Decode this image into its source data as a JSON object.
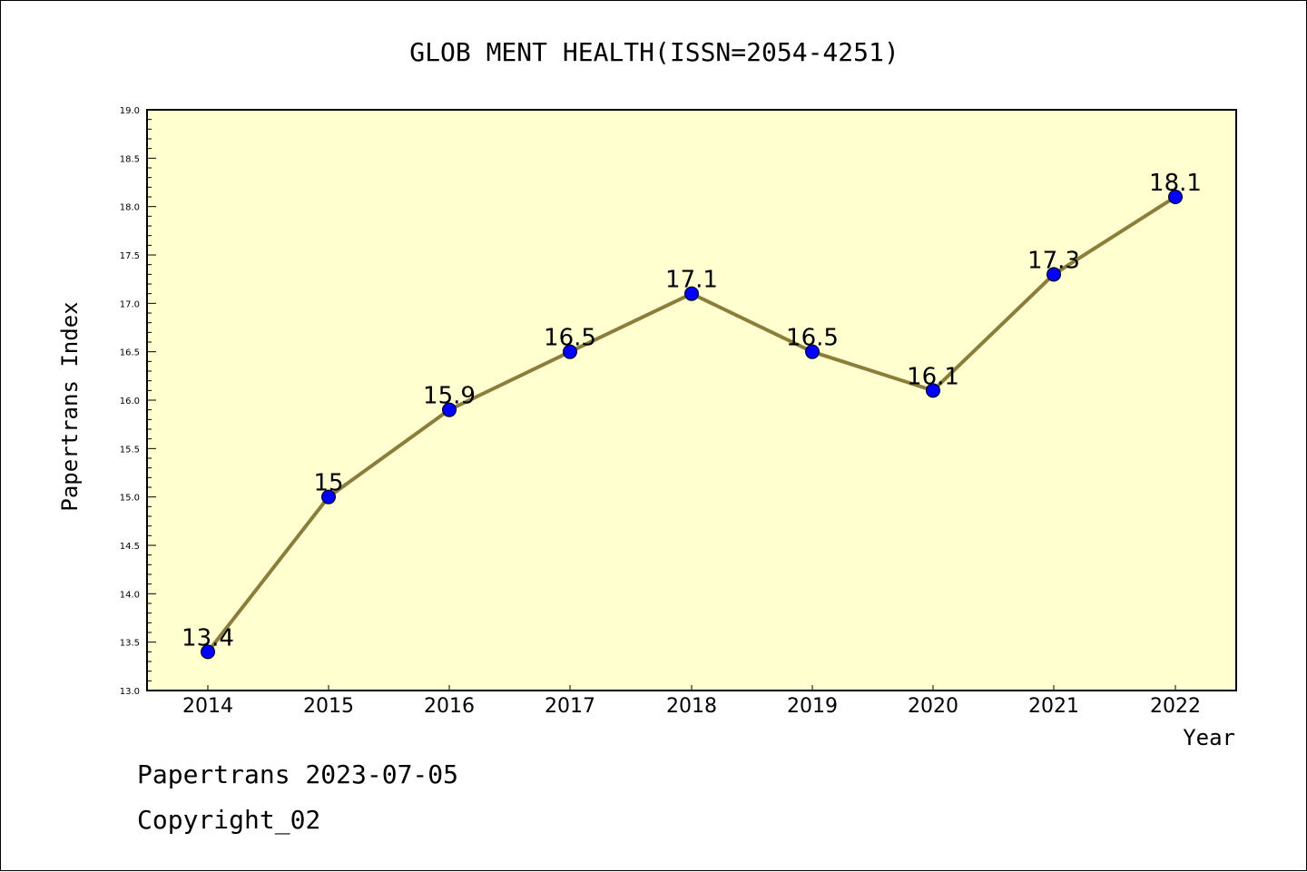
{
  "chart_data": {
    "type": "line",
    "title": "GLOB MENT HEALTH(ISSN=2054-4251)",
    "xlabel": "Year",
    "ylabel": "Papertrans Index",
    "categories": [
      "2014",
      "2015",
      "2016",
      "2017",
      "2018",
      "2019",
      "2020",
      "2021",
      "2022"
    ],
    "series": [
      {
        "values": [
          13.4,
          15,
          15.9,
          16.5,
          17.1,
          16.5,
          16.1,
          17.3,
          18.1
        ]
      }
    ],
    "data_labels": [
      "13.4",
      "15",
      "15.9",
      "16.5",
      "17.1",
      "16.5",
      "16.1",
      "17.3",
      "18.1"
    ],
    "ylim": [
      13.0,
      19.0
    ],
    "yticks": [
      "13.0",
      "13.5",
      "14.0",
      "14.5",
      "15.0",
      "15.5",
      "16.0",
      "16.5",
      "17.0",
      "17.5",
      "18.0",
      "18.5",
      "19.0"
    ],
    "grid": false,
    "colors": {
      "plot_background": "#ffffd0",
      "line": "#8b7d3a",
      "marker": "#0000ff"
    }
  },
  "footer": {
    "line1": "Papertrans 2023-07-05",
    "line2": "Copyright_02"
  }
}
